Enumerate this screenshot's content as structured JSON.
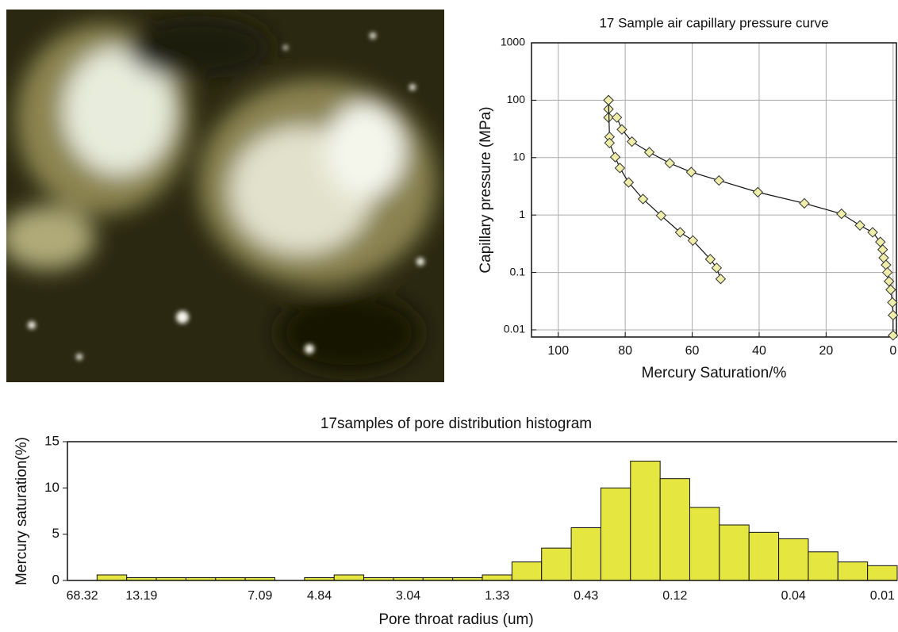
{
  "chart_data": [
    {
      "type": "line",
      "title": "17 Sample air capillary pressure curve",
      "x_label": "Mercury Saturation/%",
      "y_label": "Capillary  pressure  (MPa)",
      "log_y": true,
      "grid": true,
      "marker": "diamond",
      "marker_color": "#eeeeaa",
      "line_color": "#111111",
      "xlim": [
        108,
        -1
      ],
      "xticks": [
        100,
        80,
        60,
        40,
        20,
        0
      ],
      "ylim": [
        0.0075,
        1000
      ],
      "yticks": [
        1000,
        100,
        10,
        1,
        0.1,
        0.01
      ],
      "series": [
        {
          "x": [
            85,
            85,
            85,
            82.5,
            81,
            78,
            72.8,
            66.7,
            60.3,
            52,
            40.4,
            26.5,
            15.4,
            9.9,
            6.1,
            3.8,
            3.1,
            2.8,
            2.1,
            1.7,
            1.2,
            0.7,
            0.2,
            0,
            0
          ],
          "values": [
            100,
            70,
            50,
            50,
            31,
            19,
            12.4,
            8,
            5.6,
            4,
            2.5,
            1.6,
            1.05,
            0.66,
            0.5,
            0.34,
            0.25,
            0.18,
            0.135,
            0.1,
            0.07,
            0.05,
            0.03,
            0.018,
            0.008
          ]
        },
        {
          "x": [
            85,
            84.7,
            84.7,
            83,
            81.6,
            79,
            74.7,
            69.3,
            63.6,
            59.8,
            54.6,
            52.7,
            51.5
          ],
          "values": [
            100,
            23,
            18,
            10.2,
            6.6,
            3.7,
            1.9,
            0.98,
            0.5,
            0.36,
            0.17,
            0.12,
            0.077
          ]
        }
      ]
    },
    {
      "type": "bar",
      "title": "17samples of pore distribution histogram",
      "x_label": "Pore throat radius (um)",
      "y_label": "Mercury  saturation(%)",
      "color": "#e6e640",
      "categories": [
        "68.32",
        null,
        "13.19",
        null,
        null,
        null,
        "7.09",
        null,
        "4.84",
        null,
        null,
        "3.04",
        null,
        null,
        "1.33",
        null,
        null,
        "0.43",
        null,
        null,
        "0.12",
        null,
        null,
        null,
        "0.04",
        null,
        null,
        "0.01"
      ],
      "values": [
        0,
        0.6,
        0.3,
        0.3,
        0.3,
        0.3,
        0.3,
        0,
        0.3,
        0.6,
        0.3,
        0.3,
        0.3,
        0.3,
        0.6,
        2.0,
        3.5,
        5.7,
        10.0,
        12.9,
        11.0,
        7.9,
        6.0,
        5.2,
        4.5,
        3.1,
        2.0,
        1.6
      ],
      "ylim": [
        0,
        15
      ],
      "yticks": [
        0,
        5,
        10,
        15
      ]
    }
  ]
}
